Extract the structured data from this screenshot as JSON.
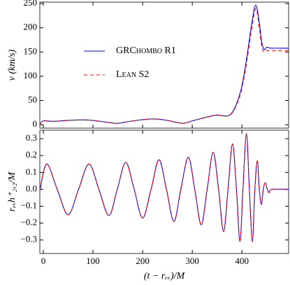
{
  "chart_data": [
    {
      "type": "line",
      "ylabel": "v (km/s)",
      "x": [
        -7,
        0,
        20,
        50,
        80,
        100,
        130,
        150,
        180,
        220,
        250,
        280,
        300,
        330,
        350,
        370,
        380,
        390,
        400,
        410,
        420,
        428,
        435,
        440,
        445,
        450,
        460,
        494
      ],
      "series": [
        {
          "name": "GRChombo R1",
          "color": "#0000ff",
          "dash": false,
          "values": [
            0,
            8,
            7,
            9,
            10,
            9,
            5,
            3,
            8,
            12,
            9,
            3,
            8,
            16,
            20,
            18,
            25,
            45,
            80,
            140,
            210,
            247,
            210,
            170,
            155,
            160,
            158,
            158
          ]
        },
        {
          "name": "Lean S2",
          "color": "#ff0000",
          "dash": true,
          "values": [
            0,
            8,
            7,
            9,
            10,
            9,
            5,
            3,
            8,
            12,
            9,
            3,
            8,
            16,
            20,
            18,
            24,
            43,
            75,
            132,
            200,
            240,
            200,
            160,
            150,
            153,
            153,
            153
          ]
        }
      ],
      "xlim": [
        -7,
        494
      ],
      "xticks": [
        0,
        100,
        200,
        300,
        400
      ],
      "xticklabels": false,
      "ylim": [
        -7,
        253
      ],
      "yticks": [
        0,
        50,
        100,
        150,
        200,
        250
      ],
      "legend": "center-left"
    },
    {
      "type": "line",
      "xlabel": "(t − rₑₓ)/M",
      "ylabel": "rₑₓh⁺₂,₂/M",
      "x": [
        -7,
        7,
        28,
        50,
        71,
        92,
        112,
        132,
        149,
        166,
        183,
        200,
        217,
        233,
        248,
        263,
        277,
        292,
        305,
        318,
        330,
        342,
        353,
        363,
        372,
        381,
        389,
        396,
        402,
        409,
        415,
        421,
        426,
        431,
        435,
        439,
        443,
        447,
        451,
        455,
        460,
        494
      ],
      "series": [
        {
          "name": "GRChombo R1",
          "color": "#0000ff",
          "dash": false,
          "values": [
            -0.01,
            0.15,
            0,
            -0.15,
            0,
            0.15,
            0,
            -0.155,
            0,
            0.16,
            0,
            -0.17,
            0,
            0.175,
            0,
            -0.19,
            0,
            0.19,
            0,
            -0.21,
            0,
            0.22,
            0,
            -0.25,
            0,
            0.27,
            0,
            -0.31,
            0,
            0.33,
            0,
            -0.31,
            0,
            0.17,
            0,
            -0.09,
            0,
            0.04,
            0,
            -0.02,
            0,
            0
          ]
        },
        {
          "name": "Lean S2",
          "color": "#ff0000",
          "dash": true,
          "values": [
            -0.01,
            0.15,
            0,
            -0.15,
            0,
            0.15,
            0,
            -0.155,
            0,
            0.16,
            0,
            -0.17,
            0,
            0.175,
            0,
            -0.19,
            0,
            0.19,
            0,
            -0.21,
            0,
            0.22,
            0,
            -0.25,
            0,
            0.27,
            0,
            -0.31,
            0,
            0.33,
            0,
            -0.31,
            0,
            0.17,
            0,
            -0.09,
            0,
            0.04,
            0,
            -0.02,
            0,
            0
          ]
        }
      ],
      "xlim": [
        -7,
        494
      ],
      "xticks": [
        0,
        100,
        200,
        300,
        400
      ],
      "xticklabels": true,
      "ylim": [
        -0.38,
        0.35
      ],
      "yticks": [
        {
          "value": -0.3,
          "label": "−0.3"
        },
        {
          "value": -0.2,
          "label": "−0.2"
        },
        {
          "value": -0.1,
          "label": "−0.1"
        },
        {
          "value": 0,
          "label": "0.0"
        },
        0.1,
        0.2,
        0.3
      ]
    }
  ]
}
